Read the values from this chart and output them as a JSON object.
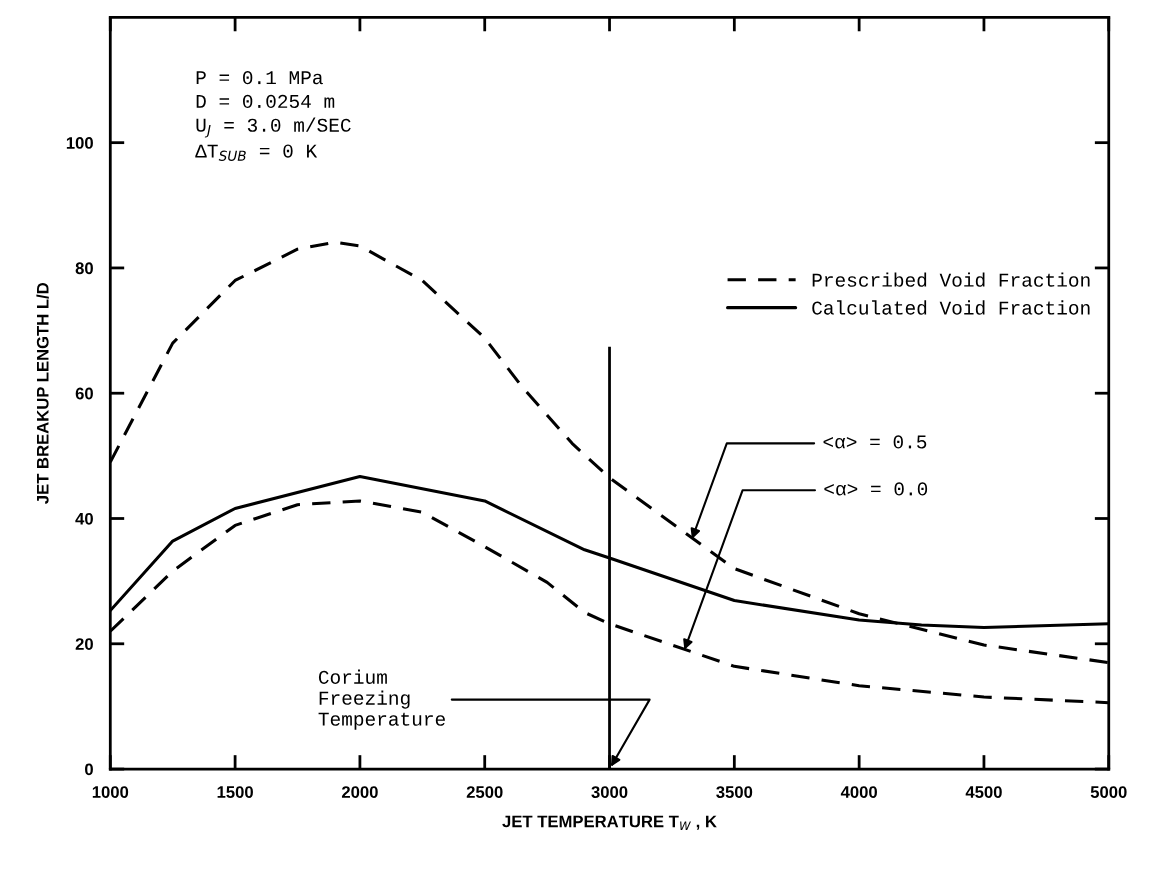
{
  "chart_data": {
    "type": "line",
    "xlabel": "JET TEMPERATURE T$_{W}$ , K",
    "ylabel": "JET BREAKUP LENGTH L/D",
    "xlim": [
      1000,
      5000
    ],
    "ylim": [
      0,
      120
    ],
    "xticks": [
      1000,
      1500,
      2000,
      2500,
      3000,
      3500,
      4000,
      4500,
      5000
    ],
    "yticks": [
      0,
      20,
      40,
      60,
      80,
      100
    ],
    "grid": false,
    "legend": "right",
    "marker": "none",
    "series": [
      {
        "name": "Prescribed Void Fraction",
        "color": "#000000",
        "line_style": "dashed",
        "x": [
          1000,
          1250,
          1500,
          1750,
          1900,
          2000,
          2250,
          2500,
          2650,
          2850,
          3000,
          3500,
          4000,
          4500,
          5000
        ],
        "values": [
          49,
          68,
          78,
          83,
          84.1,
          83.5,
          78,
          68.8,
          61,
          52,
          46.5,
          32,
          24.8,
          19.8,
          17
        ]
      },
      {
        "color": "#000000",
        "line_style": "dashed",
        "x": [
          1000,
          1250,
          1500,
          1750,
          2000,
          2250,
          2500,
          2750,
          2900,
          3000,
          3500,
          4000,
          4500,
          5000
        ],
        "values": [
          22,
          31.6,
          38.9,
          42.2,
          42.8,
          41,
          35.5,
          29.8,
          25,
          23.2,
          16.4,
          13.3,
          11.5,
          10.6
        ]
      },
      {
        "name": "Calculated Void Fraction",
        "color": "#000000",
        "line_style": "solid",
        "x": [
          1000,
          1250,
          1500,
          2000,
          2500,
          2900,
          3000,
          3500,
          4000,
          4250,
          4500,
          5000
        ],
        "values": [
          25.3,
          36.4,
          41.6,
          46.7,
          42.8,
          35,
          33.7,
          26.9,
          23.8,
          23,
          22.6,
          23.2
        ]
      }
    ],
    "ref_lines": [
      {
        "axis": "x",
        "value": 3000,
        "label": "Corium\nFreezing\nTemperature",
        "color": "#000000",
        "line_style": "solid"
      }
    ],
    "annotations": [
      "P = 0.1 MPa\nD = 0.0254 m\nU$_{J}$ = 3.0 m/SEC\nΔT$_{SUB}$ = 0 K",
      {
        "text": "<α> = 0.5",
        "x": 3330,
        "y": 36.7
      },
      {
        "text": "<α> = 0.0",
        "x": 3300,
        "y": 19
      }
    ]
  }
}
